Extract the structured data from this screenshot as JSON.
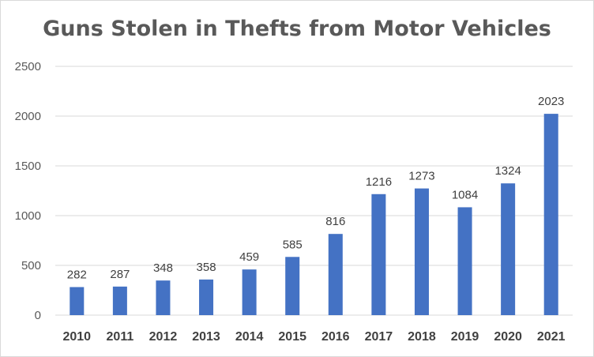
{
  "chart_data": {
    "type": "bar",
    "title": "Guns Stolen in Thefts from Motor Vehicles",
    "xlabel": "",
    "ylabel": "",
    "categories": [
      "2010",
      "2011",
      "2012",
      "2013",
      "2014",
      "2015",
      "2016",
      "2017",
      "2018",
      "2019",
      "2020",
      "2021"
    ],
    "values": [
      282,
      287,
      348,
      358,
      459,
      585,
      816,
      1216,
      1273,
      1084,
      1324,
      2023
    ],
    "ylim": [
      0,
      2500
    ],
    "yticks": [
      0,
      500,
      1000,
      1500,
      2000,
      2500
    ],
    "grid": "horizontal",
    "legend": "none",
    "bar_color": "#4472c4",
    "data_labels": true
  }
}
